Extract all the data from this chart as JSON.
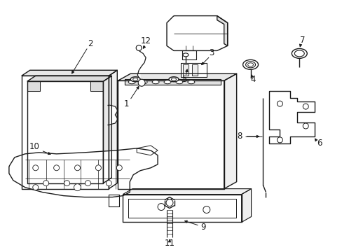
{
  "bg_color": "#ffffff",
  "lc": "#1a1a1a",
  "lw": 1.0,
  "fig_width": 4.89,
  "fig_height": 3.6,
  "dpi": 100
}
